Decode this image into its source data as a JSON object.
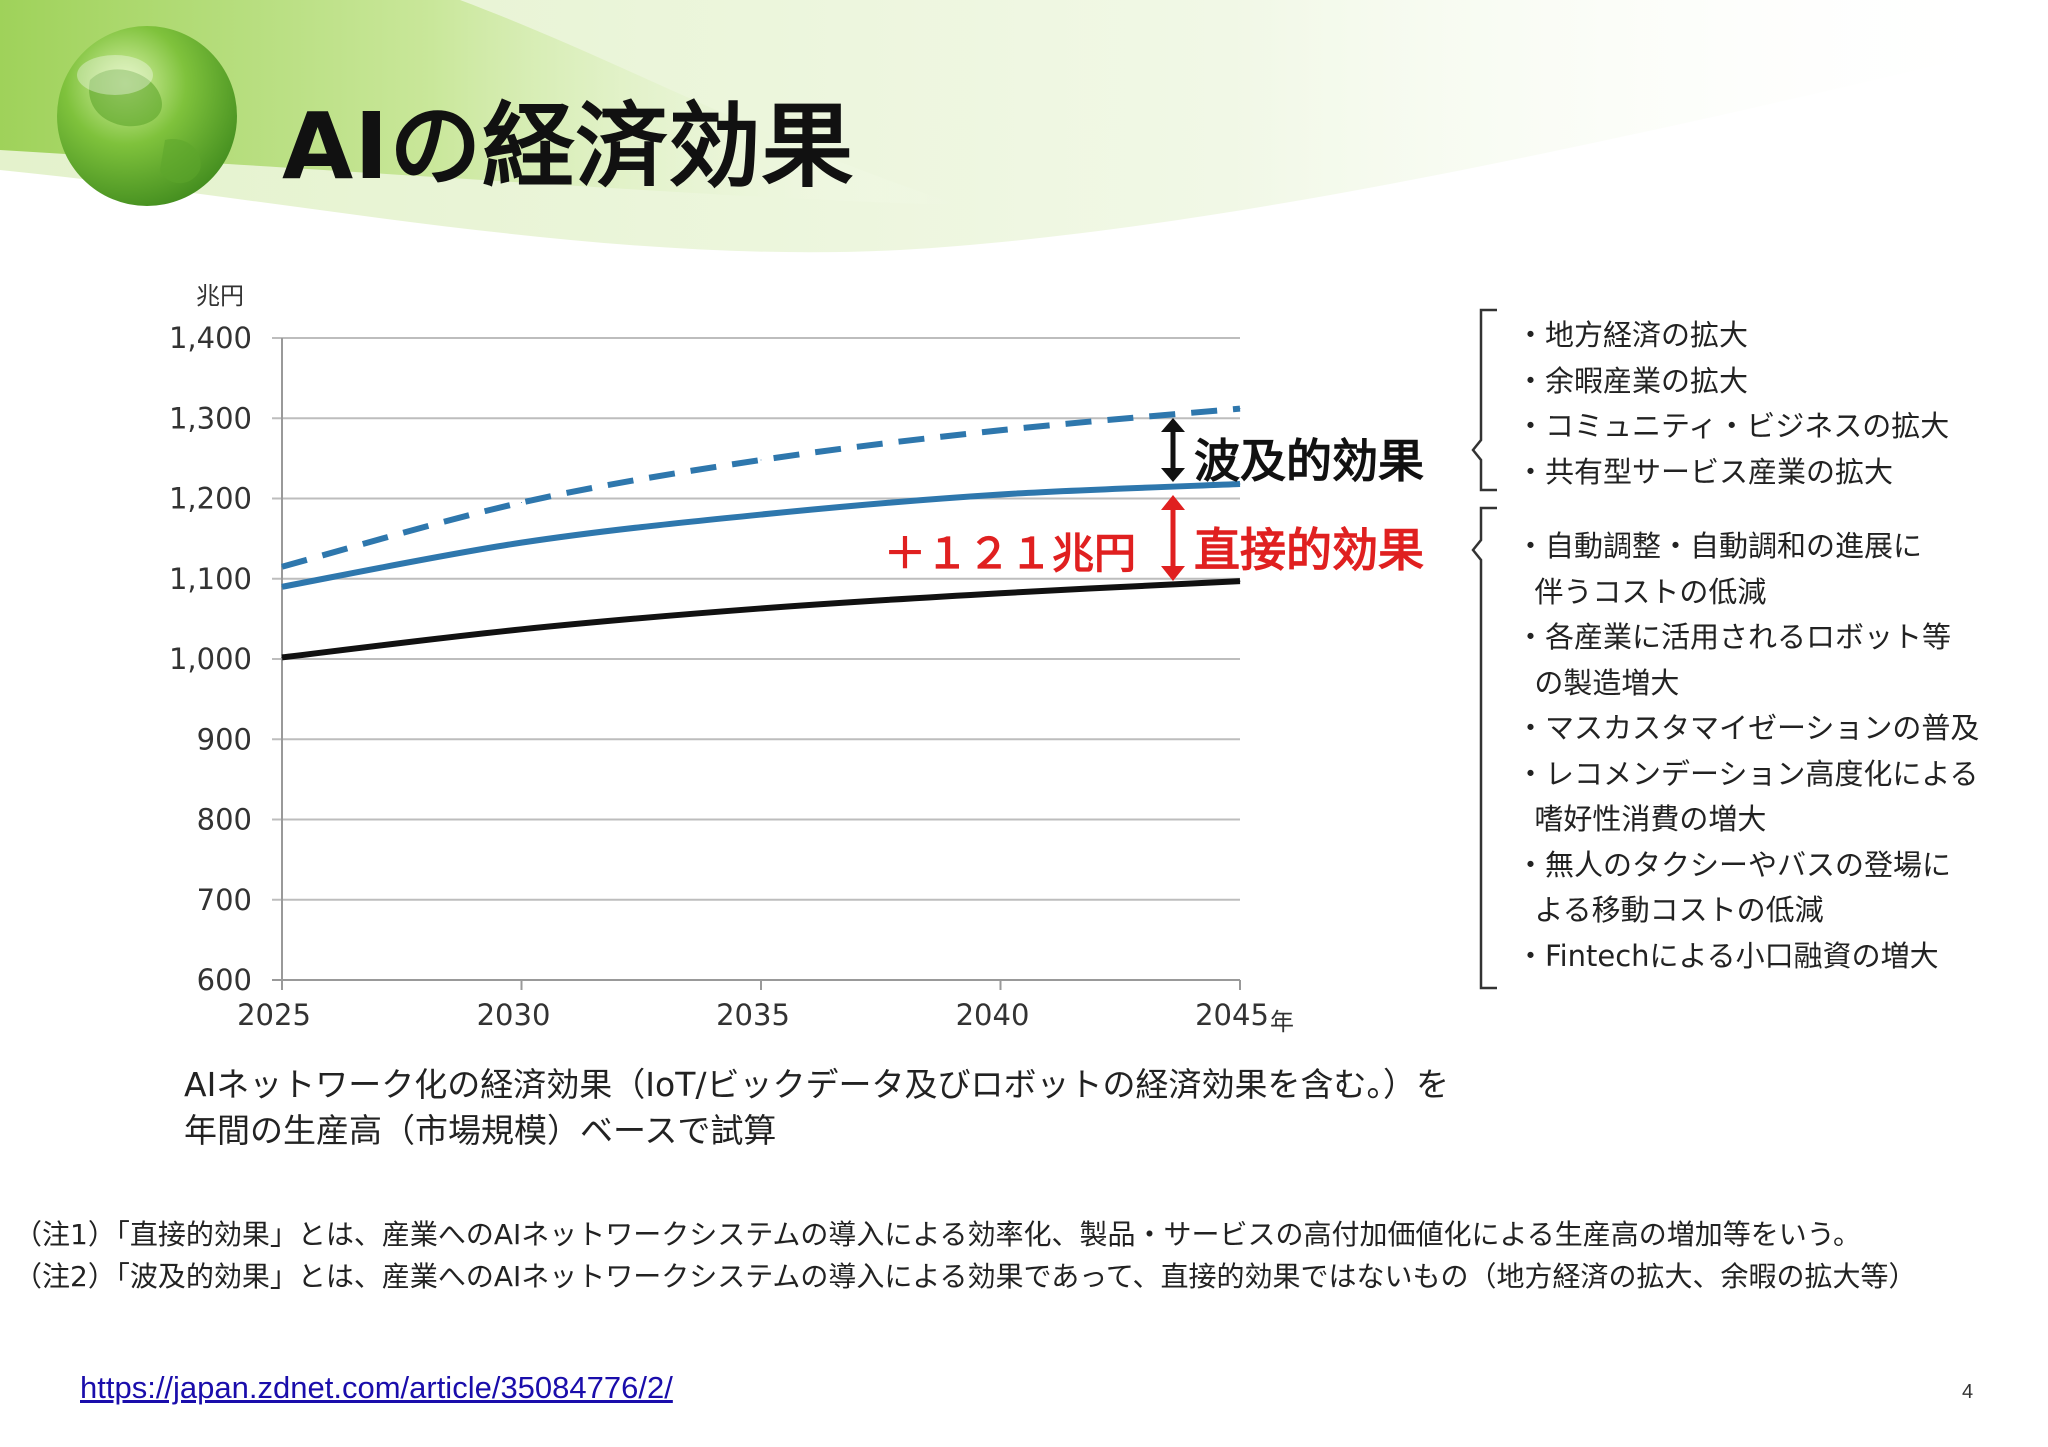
{
  "slide": {
    "title": "AIの経済効果",
    "page_number": "4",
    "link": "https://japan.zdnet.com/article/35084776/2/"
  },
  "colors": {
    "accent_green": "#8cc63f",
    "series_blue": "#2e77ad",
    "series_black": "#111111",
    "direct_red": "#e02020"
  },
  "icons": [
    "globe-icon",
    "double-arrow-icon"
  ],
  "chart_data": {
    "type": "line",
    "y_unit": "兆円",
    "x_unit": "年",
    "x": [
      2025,
      2030,
      2035,
      2040,
      2045
    ],
    "ylim": [
      600,
      1400
    ],
    "xlim": [
      2025,
      2045
    ],
    "yticks": [
      "600",
      "700",
      "800",
      "900",
      "1,000",
      "1,100",
      "1,200",
      "1,300",
      "1,400"
    ],
    "xticks": [
      "2025",
      "2030",
      "2035",
      "2040",
      "2045"
    ],
    "grid": true,
    "series": [
      {
        "style": "dashed",
        "color": "#2e77ad",
        "values": [
          1115,
          1195,
          1248,
          1285,
          1312
        ]
      },
      {
        "style": "solid",
        "color": "#2e77ad",
        "values": [
          1090,
          1145,
          1180,
          1205,
          1218
        ]
      },
      {
        "style": "solid",
        "color": "#111111",
        "values": [
          1002,
          1037,
          1063,
          1082,
          1097
        ]
      }
    ],
    "annotations": {
      "ripple_label": "波及的効果",
      "direct_label": "直接的効果",
      "direct_value": "＋１２１兆円"
    }
  },
  "ripple_items": [
    "・地方経済の拡大",
    "・余暇産業の拡大",
    "・コミュニティ・ビジネスの拡大",
    "・共有型サービス産業の拡大"
  ],
  "direct_items": [
    "・自動調整・自動調和の進展に",
    "  伴うコストの低減",
    "・各産業に活用されるロボット等",
    "  の製造増大",
    "・マスカスタマイゼーションの普及",
    "・レコメンデーション高度化による",
    "  嗜好性消費の増大",
    "・無人のタクシーやバスの登場に",
    "  よる移動コストの低減",
    "・Fintechによる小口融資の増大"
  ],
  "caption": [
    "AIネットワーク化の経済効果（IoT/ビックデータ及びロボットの経済効果を含む。）を",
    "年間の生産高（市場規模）ベースで試算"
  ],
  "notes": [
    "（注1）「直接的効果」とは、産業へのAIネットワークシステムの導入による効率化、製品・サービスの高付加価値化による生産高の増加等をいう。",
    "（注2）「波及的効果」とは、産業へのAIネットワークシステムの導入による効果であって、直接的効果ではないもの（地方経済の拡大、余暇の拡大等）"
  ]
}
